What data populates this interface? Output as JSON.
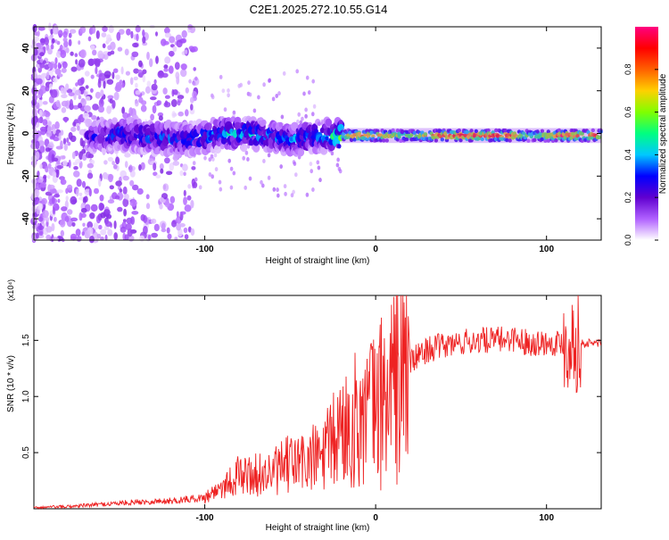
{
  "title": "C2E1.2025.272.10.55.G14",
  "chart_data": [
    {
      "type": "heatmap",
      "xlabel": "Height of straight line (km)",
      "ylabel": "Frequency (Hz)",
      "xlim": [
        -200,
        132
      ],
      "ylim": [
        -50,
        50
      ],
      "x_ticks": [
        -100,
        0,
        100
      ],
      "x_tick_labels": [
        "-100",
        "0",
        "100"
      ],
      "y_ticks": [
        -40,
        -20,
        0,
        20,
        40
      ],
      "y_tick_labels": [
        "-40",
        "-20",
        "0",
        "20",
        "40"
      ],
      "colorbar": {
        "label": "Normalized spectral amplitude",
        "range": [
          0,
          1
        ],
        "ticks": [
          0,
          0.2,
          0.4,
          0.6,
          0.8
        ],
        "tick_labels": [
          "0.0",
          "0.2",
          "0.4",
          "0.6",
          "0.8"
        ],
        "colormap": [
          "#ffffff",
          "#b060ff",
          "#6000d0",
          "#0000ff",
          "#00c8ff",
          "#00ff80",
          "#80ff00",
          "#ffd000",
          "#ff6000",
          "#ff0000",
          "#ff0080"
        ]
      },
      "ridge": [
        {
          "x": -165,
          "f": -2,
          "a": 0.25
        },
        {
          "x": -150,
          "f": 0,
          "a": 0.35
        },
        {
          "x": -130,
          "f": -2,
          "a": 0.35
        },
        {
          "x": -110,
          "f": -3,
          "a": 0.35
        },
        {
          "x": -90,
          "f": 0,
          "a": 0.4
        },
        {
          "x": -70,
          "f": 0,
          "a": 0.4
        },
        {
          "x": -50,
          "f": -3,
          "a": 0.35
        },
        {
          "x": -30,
          "f": -1,
          "a": 0.4
        },
        {
          "x": -20,
          "f": -1,
          "a": 0.6
        },
        {
          "x": -10,
          "f": -1,
          "a": 0.95
        },
        {
          "x": 0,
          "f": -1,
          "a": 0.8
        },
        {
          "x": 20,
          "f": -1,
          "a": 0.6
        },
        {
          "x": 40,
          "f": -1,
          "a": 0.95
        },
        {
          "x": 80,
          "f": -1,
          "a": 0.95
        },
        {
          "x": 90,
          "f": -1,
          "a": 0.55
        },
        {
          "x": 110,
          "f": -1,
          "a": 0.95
        },
        {
          "x": 132,
          "f": -1,
          "a": 0.85
        }
      ]
    },
    {
      "type": "line",
      "xlabel": "Height of straight line (km)",
      "ylabel": "SNR (10 * v/v)",
      "y_scale_label": "(x10⁴)",
      "xlim": [
        -200,
        132
      ],
      "ylim": [
        0,
        1.9
      ],
      "x_ticks": [
        -100,
        0,
        100
      ],
      "x_tick_labels": [
        "-100",
        "0",
        "100"
      ],
      "y_ticks": [
        0.5,
        1.0,
        1.5
      ],
      "y_tick_labels": [
        "0.5",
        "1.0",
        "1.5"
      ],
      "series": [
        {
          "name": "SNR",
          "color": "#ee2222",
          "x": [
            -200,
            -180,
            -160,
            -140,
            -120,
            -100,
            -90,
            -80,
            -70,
            -60,
            -50,
            -40,
            -30,
            -20,
            -10,
            0,
            10,
            20,
            30,
            40,
            50,
            60,
            70,
            80,
            90,
            100,
            110,
            115,
            120,
            132
          ],
          "y": [
            0.01,
            0.02,
            0.04,
            0.06,
            0.07,
            0.1,
            0.2,
            0.3,
            0.3,
            0.32,
            0.4,
            0.42,
            0.48,
            0.7,
            0.8,
            0.9,
            1.1,
            1.3,
            1.42,
            1.45,
            1.48,
            1.5,
            1.5,
            1.52,
            1.48,
            1.48,
            1.48,
            1.5,
            1.47,
            1.48
          ]
        }
      ]
    }
  ]
}
